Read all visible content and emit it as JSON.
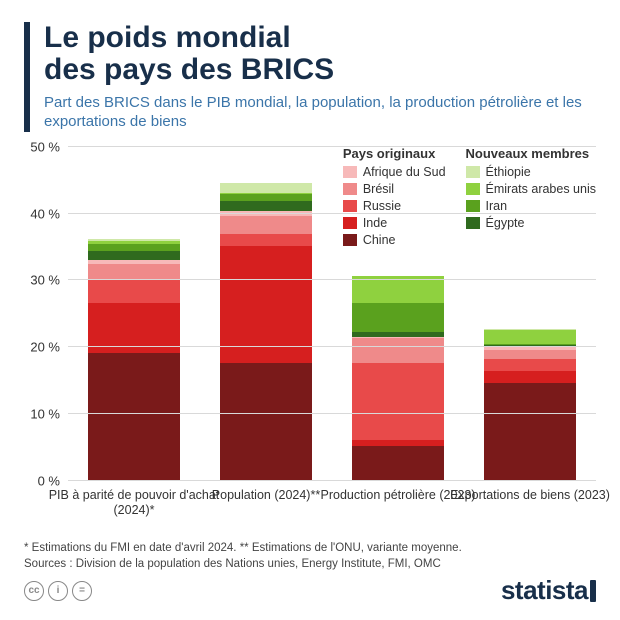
{
  "title_line1": "Le poids mondial",
  "title_line2": "des pays des BRICS",
  "subtitle": "Part des BRICS dans le PIB mondial, la population, la production pétrolière et les exportations de biens",
  "accent_bar_color": "#182f4a",
  "subtitle_color": "#3b75a9",
  "chart": {
    "type": "stacked-bar",
    "ymax": 50,
    "ytick_step": 10,
    "y_suffix": " %",
    "grid_color": "#d9d9d9",
    "background_color": "#ffffff",
    "categories": [
      {
        "label": "PIB à parité de pouvoir d'achat (2024)*"
      },
      {
        "label": "Population (2024)**"
      },
      {
        "label": "Production pétrolière (2023)"
      },
      {
        "label": "Exportations de biens (2023)"
      }
    ],
    "legend_groups": [
      {
        "title": "Pays originaux",
        "items": [
          {
            "key": "afrique_du_sud",
            "label": "Afrique du Sud",
            "color": "#f7b9b9"
          },
          {
            "key": "bresil",
            "label": "Brésil",
            "color": "#ef8a8a"
          },
          {
            "key": "russie",
            "label": "Russie",
            "color": "#e84a4a"
          },
          {
            "key": "inde",
            "label": "Inde",
            "color": "#d61f1f"
          },
          {
            "key": "chine",
            "label": "Chine",
            "color": "#7a1a1a"
          }
        ]
      },
      {
        "title": "Nouveaux membres",
        "items": [
          {
            "key": "ethiopie",
            "label": "Éthiopie",
            "color": "#cfe8a8"
          },
          {
            "key": "emirats",
            "label": "Émirats arabes unis",
            "color": "#8fd13f"
          },
          {
            "key": "iran",
            "label": "Iran",
            "color": "#5aa11e"
          },
          {
            "key": "egypte",
            "label": "Égypte",
            "color": "#2f6a1e"
          }
        ]
      }
    ],
    "stack_order": [
      "chine",
      "inde",
      "russie",
      "bresil",
      "afrique_du_sud",
      "egypte",
      "iran",
      "emirats",
      "ethiopie"
    ],
    "data": [
      {
        "chine": 19.0,
        "inde": 7.5,
        "russie": 3.5,
        "bresil": 2.3,
        "afrique_du_sud": 0.6,
        "egypte": 1.3,
        "iran": 1.1,
        "emirats": 0.5,
        "ethiopie": 0.3
      },
      {
        "chine": 17.5,
        "inde": 17.5,
        "russie": 1.8,
        "bresil": 2.7,
        "afrique_du_sud": 0.8,
        "egypte": 1.4,
        "iran": 1.1,
        "emirats": 0.1,
        "ethiopie": 1.6
      },
      {
        "chine": 5.0,
        "inde": 1.0,
        "russie": 11.5,
        "bresil": 3.7,
        "afrique_du_sud": 0.2,
        "egypte": 0.8,
        "iran": 4.3,
        "emirats": 4.0,
        "ethiopie": 0.0
      },
      {
        "chine": 14.5,
        "inde": 1.8,
        "russie": 1.8,
        "bresil": 1.4,
        "afrique_du_sud": 0.5,
        "egypte": 0.2,
        "iran": 0.2,
        "emirats": 2.1,
        "ethiopie": 0.1
      }
    ]
  },
  "footnote1": "* Estimations du FMI en date d'avril 2024.    ** Estimations de l'ONU, variante moyenne.",
  "footnote2": "Sources : Division de la population des Nations unies, Energy Institute, FMI, OMC",
  "logo_text": "statista",
  "cc": [
    "cc",
    "i",
    "="
  ]
}
